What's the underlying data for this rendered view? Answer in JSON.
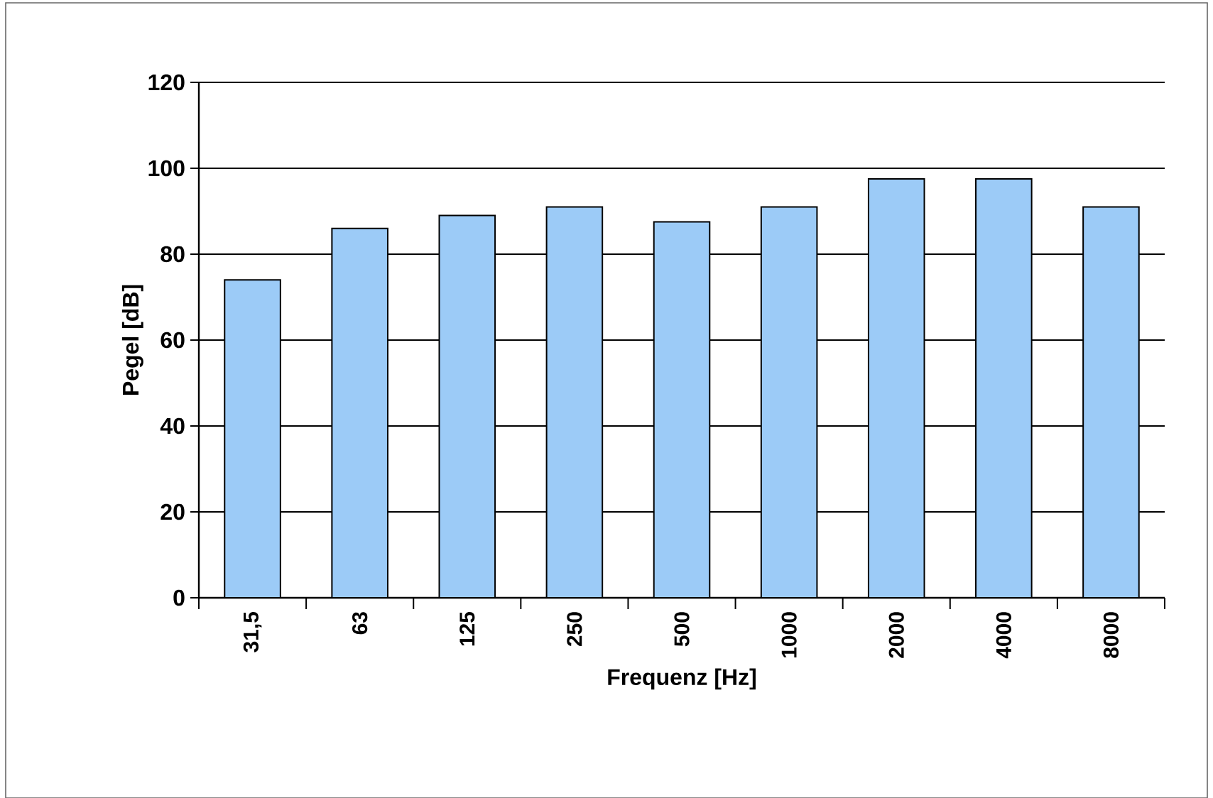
{
  "chart_data": {
    "type": "bar",
    "xlabel": "Frequenz [Hz]",
    "ylabel": "Pegel [dB]",
    "categories": [
      "31,5",
      "63",
      "125",
      "250",
      "500",
      "1000",
      "2000",
      "4000",
      "8000"
    ],
    "values": [
      74,
      86,
      89,
      91,
      87.5,
      91,
      97.5,
      97.5,
      91
    ],
    "color": "#9ccbf7",
    "ylim": [
      0,
      120
    ],
    "yticks": [
      0,
      20,
      40,
      60,
      80,
      100,
      120
    ],
    "grid": "y"
  }
}
